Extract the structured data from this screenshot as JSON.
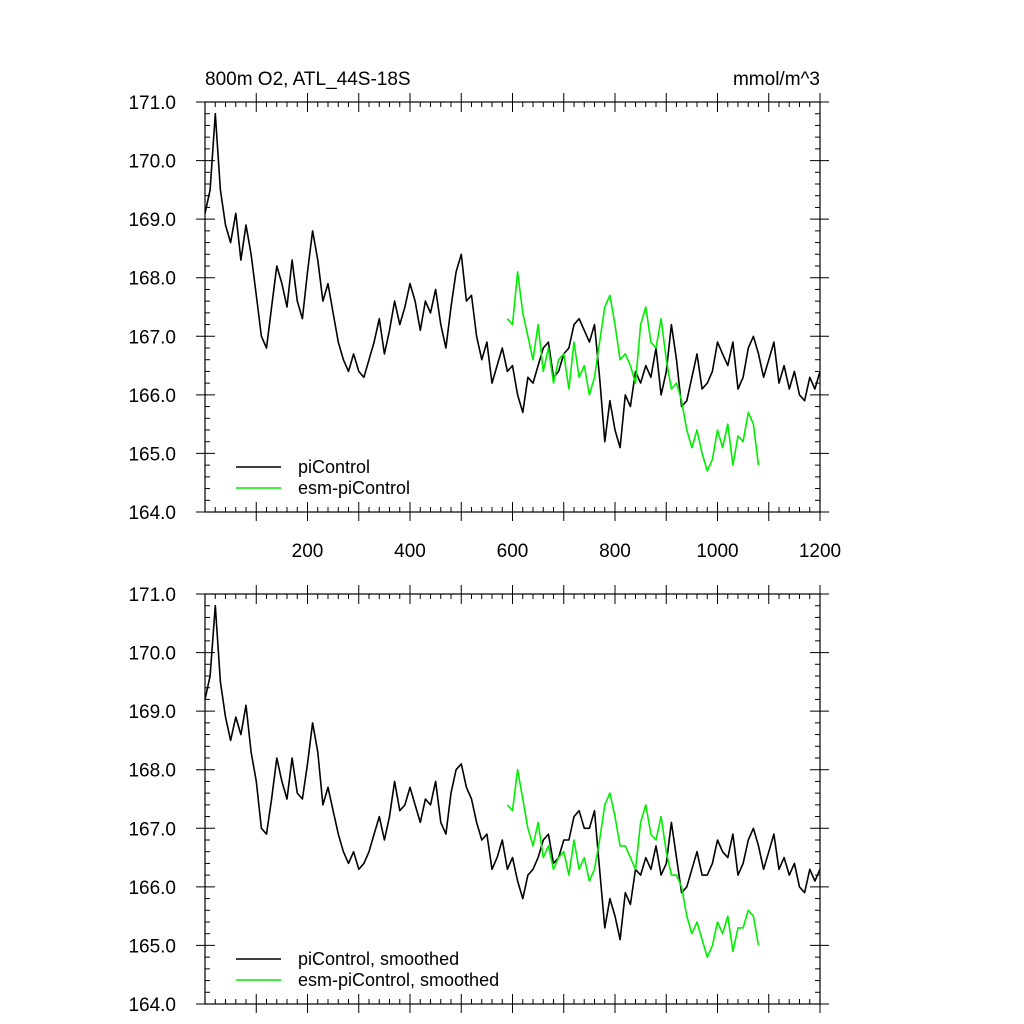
{
  "chart_data": [
    {
      "type": "line",
      "title": "800m O2, ATL_44S-18S",
      "units": "mmol/m^3",
      "xlim": [
        0,
        1200
      ],
      "ylim": [
        164,
        171
      ],
      "x_ticks": [
        200,
        400,
        600,
        800,
        1000,
        1200
      ],
      "y_ticks": [
        "171.0",
        "170.0",
        "169.0",
        "168.0",
        "167.0",
        "166.0",
        "165.0",
        "164.0"
      ],
      "legend_position": "bottom-left",
      "series": [
        {
          "name": "piControl",
          "color": "#000000",
          "x": [
            0,
            10,
            20,
            30,
            40,
            50,
            60,
            70,
            80,
            90,
            100,
            110,
            120,
            130,
            140,
            150,
            160,
            170,
            180,
            190,
            200,
            210,
            220,
            230,
            240,
            250,
            260,
            270,
            280,
            290,
            300,
            310,
            320,
            330,
            340,
            350,
            360,
            370,
            380,
            390,
            400,
            410,
            420,
            430,
            440,
            450,
            460,
            470,
            480,
            490,
            500,
            510,
            520,
            530,
            540,
            550,
            560,
            570,
            580,
            590,
            600,
            610,
            620,
            630,
            640,
            650,
            660,
            670,
            680,
            690,
            700,
            710,
            720,
            730,
            740,
            750,
            760,
            770,
            780,
            790,
            800,
            810,
            820,
            830,
            840,
            850,
            860,
            870,
            880,
            890,
            900,
            910,
            920,
            930,
            940,
            950,
            960,
            970,
            980,
            990,
            1000,
            1010,
            1020,
            1030,
            1040,
            1050,
            1060,
            1070,
            1080,
            1090,
            1100,
            1110,
            1120,
            1130,
            1140,
            1150,
            1160,
            1170,
            1180,
            1190,
            1200
          ],
          "values": [
            169.1,
            169.5,
            170.8,
            169.5,
            168.9,
            168.6,
            169.1,
            168.3,
            168.9,
            168.4,
            167.7,
            167.0,
            166.8,
            167.5,
            168.2,
            167.9,
            167.5,
            168.3,
            167.6,
            167.3,
            168.1,
            168.8,
            168.3,
            167.6,
            167.9,
            167.4,
            166.9,
            166.6,
            166.4,
            166.7,
            166.4,
            166.3,
            166.6,
            166.9,
            167.3,
            166.7,
            167.1,
            167.6,
            167.2,
            167.5,
            167.9,
            167.6,
            167.1,
            167.6,
            167.4,
            167.8,
            167.2,
            166.8,
            167.5,
            168.1,
            168.4,
            167.6,
            167.7,
            167.0,
            166.6,
            166.9,
            166.2,
            166.5,
            166.8,
            166.4,
            166.5,
            166.0,
            165.7,
            166.3,
            166.2,
            166.5,
            166.8,
            166.9,
            166.3,
            166.4,
            166.7,
            166.8,
            167.2,
            167.3,
            167.1,
            166.9,
            167.2,
            166.3,
            165.2,
            165.9,
            165.4,
            165.1,
            166.0,
            165.8,
            166.4,
            166.2,
            166.5,
            166.3,
            166.8,
            166.0,
            166.4,
            167.2,
            166.6,
            165.8,
            165.9,
            166.3,
            166.7,
            166.1,
            166.2,
            166.4,
            166.9,
            166.7,
            166.5,
            166.9,
            166.1,
            166.3,
            166.8,
            167.0,
            166.7,
            166.3,
            166.6,
            166.9,
            166.2,
            166.5,
            166.1,
            166.4,
            166.0,
            165.9,
            166.3,
            166.1,
            166.4
          ]
        },
        {
          "name": "esm-piControl",
          "color": "#00ee00",
          "x": [
            590,
            600,
            610,
            620,
            630,
            640,
            650,
            660,
            670,
            680,
            690,
            700,
            710,
            720,
            730,
            740,
            750,
            760,
            770,
            780,
            790,
            800,
            810,
            820,
            830,
            840,
            850,
            860,
            870,
            880,
            890,
            900,
            910,
            920,
            930,
            940,
            950,
            960,
            970,
            980,
            990,
            1000,
            1010,
            1020,
            1030,
            1040,
            1050,
            1060,
            1070,
            1080
          ],
          "values": [
            167.3,
            167.2,
            168.1,
            167.4,
            167.0,
            166.6,
            167.2,
            166.4,
            166.8,
            166.2,
            166.6,
            166.7,
            166.1,
            166.9,
            166.3,
            166.5,
            166.0,
            166.3,
            166.9,
            167.5,
            167.7,
            167.2,
            166.6,
            166.7,
            166.5,
            166.2,
            167.2,
            167.5,
            166.9,
            166.8,
            167.3,
            166.6,
            166.1,
            166.2,
            165.9,
            165.4,
            165.1,
            165.4,
            165.0,
            164.7,
            164.9,
            165.4,
            165.1,
            165.5,
            164.8,
            165.3,
            165.2,
            165.7,
            165.5,
            164.8
          ]
        }
      ]
    },
    {
      "type": "line",
      "xlim": [
        0,
        1200
      ],
      "ylim": [
        164,
        171
      ],
      "x_ticks": [
        200,
        400,
        600,
        800,
        1000,
        1200
      ],
      "y_ticks": [
        "171.0",
        "170.0",
        "169.0",
        "168.0",
        "167.0",
        "166.0",
        "165.0",
        "164.0"
      ],
      "legend_position": "bottom-left",
      "series": [
        {
          "name": "piControl, smoothed",
          "color": "#000000",
          "x": [
            0,
            10,
            20,
            30,
            40,
            50,
            60,
            70,
            80,
            90,
            100,
            110,
            120,
            130,
            140,
            150,
            160,
            170,
            180,
            190,
            200,
            210,
            220,
            230,
            240,
            250,
            260,
            270,
            280,
            290,
            300,
            310,
            320,
            330,
            340,
            350,
            360,
            370,
            380,
            390,
            400,
            410,
            420,
            430,
            440,
            450,
            460,
            470,
            480,
            490,
            500,
            510,
            520,
            530,
            540,
            550,
            560,
            570,
            580,
            590,
            600,
            610,
            620,
            630,
            640,
            650,
            660,
            670,
            680,
            690,
            700,
            710,
            720,
            730,
            740,
            750,
            760,
            770,
            780,
            790,
            800,
            810,
            820,
            830,
            840,
            850,
            860,
            870,
            880,
            890,
            900,
            910,
            920,
            930,
            940,
            950,
            960,
            970,
            980,
            990,
            1000,
            1010,
            1020,
            1030,
            1040,
            1050,
            1060,
            1070,
            1080,
            1090,
            1100,
            1110,
            1120,
            1130,
            1140,
            1150,
            1160,
            1170,
            1180,
            1190,
            1200
          ],
          "values": [
            169.2,
            169.6,
            170.8,
            169.5,
            168.9,
            168.5,
            168.9,
            168.6,
            169.1,
            168.3,
            167.8,
            167.0,
            166.9,
            167.5,
            168.2,
            167.8,
            167.5,
            168.2,
            167.6,
            167.5,
            168.1,
            168.8,
            168.3,
            167.4,
            167.7,
            167.3,
            166.9,
            166.6,
            166.4,
            166.6,
            166.3,
            166.4,
            166.6,
            166.9,
            167.2,
            166.8,
            167.2,
            167.8,
            167.3,
            167.4,
            167.7,
            167.4,
            167.1,
            167.5,
            167.4,
            167.8,
            167.1,
            166.9,
            167.6,
            168.0,
            168.1,
            167.7,
            167.5,
            167.1,
            166.8,
            166.9,
            166.3,
            166.5,
            166.8,
            166.3,
            166.5,
            166.1,
            165.8,
            166.2,
            166.3,
            166.5,
            166.8,
            166.9,
            166.4,
            166.5,
            166.8,
            166.8,
            167.2,
            167.3,
            167.0,
            167.0,
            167.3,
            166.3,
            165.3,
            165.8,
            165.5,
            165.1,
            165.9,
            165.7,
            166.3,
            166.2,
            166.5,
            166.3,
            166.7,
            166.2,
            166.4,
            167.1,
            166.5,
            165.9,
            166.0,
            166.3,
            166.6,
            166.2,
            166.2,
            166.4,
            166.8,
            166.6,
            166.5,
            166.9,
            166.2,
            166.4,
            166.8,
            167.0,
            166.7,
            166.3,
            166.6,
            166.9,
            166.3,
            166.5,
            166.2,
            166.4,
            166.0,
            165.9,
            166.3,
            166.1,
            166.3
          ]
        },
        {
          "name": "esm-piControl, smoothed",
          "color": "#00ee00",
          "x": [
            590,
            600,
            610,
            620,
            630,
            640,
            650,
            660,
            670,
            680,
            690,
            700,
            710,
            720,
            730,
            740,
            750,
            760,
            770,
            780,
            790,
            800,
            810,
            820,
            830,
            840,
            850,
            860,
            870,
            880,
            890,
            900,
            910,
            920,
            930,
            940,
            950,
            960,
            970,
            980,
            990,
            1000,
            1010,
            1020,
            1030,
            1040,
            1050,
            1060,
            1070,
            1080
          ],
          "values": [
            167.4,
            167.3,
            168.0,
            167.5,
            167.0,
            166.7,
            167.1,
            166.5,
            166.7,
            166.3,
            166.5,
            166.6,
            166.2,
            166.8,
            166.3,
            166.5,
            166.1,
            166.3,
            166.8,
            167.4,
            167.6,
            167.2,
            166.7,
            166.7,
            166.5,
            166.3,
            167.1,
            167.4,
            166.9,
            166.8,
            167.2,
            166.6,
            166.2,
            166.2,
            166.0,
            165.5,
            165.2,
            165.4,
            165.1,
            164.8,
            165.0,
            165.4,
            165.2,
            165.5,
            164.9,
            165.3,
            165.3,
            165.6,
            165.5,
            165.0
          ]
        }
      ]
    }
  ]
}
